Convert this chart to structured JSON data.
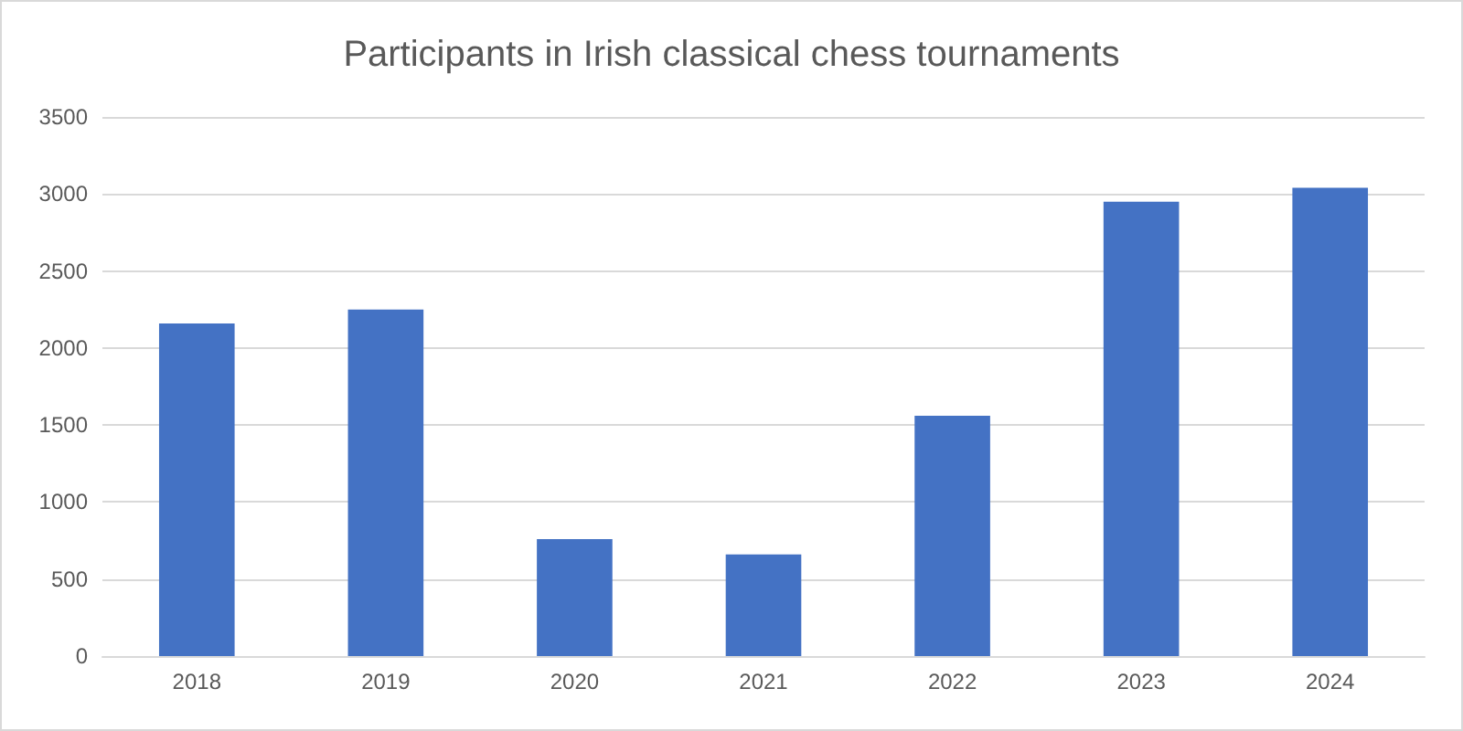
{
  "chart_data": {
    "type": "bar",
    "title": "Participants in Irish classical chess tournaments",
    "categories": [
      "2018",
      "2019",
      "2020",
      "2021",
      "2022",
      "2023",
      "2024"
    ],
    "values": [
      2160,
      2250,
      760,
      660,
      1560,
      2950,
      3040
    ],
    "color": "#4472c4",
    "ylim": [
      0,
      3500
    ],
    "yticks": [
      0,
      500,
      1000,
      1500,
      2000,
      2500,
      3000,
      3500
    ],
    "grid": "y"
  }
}
